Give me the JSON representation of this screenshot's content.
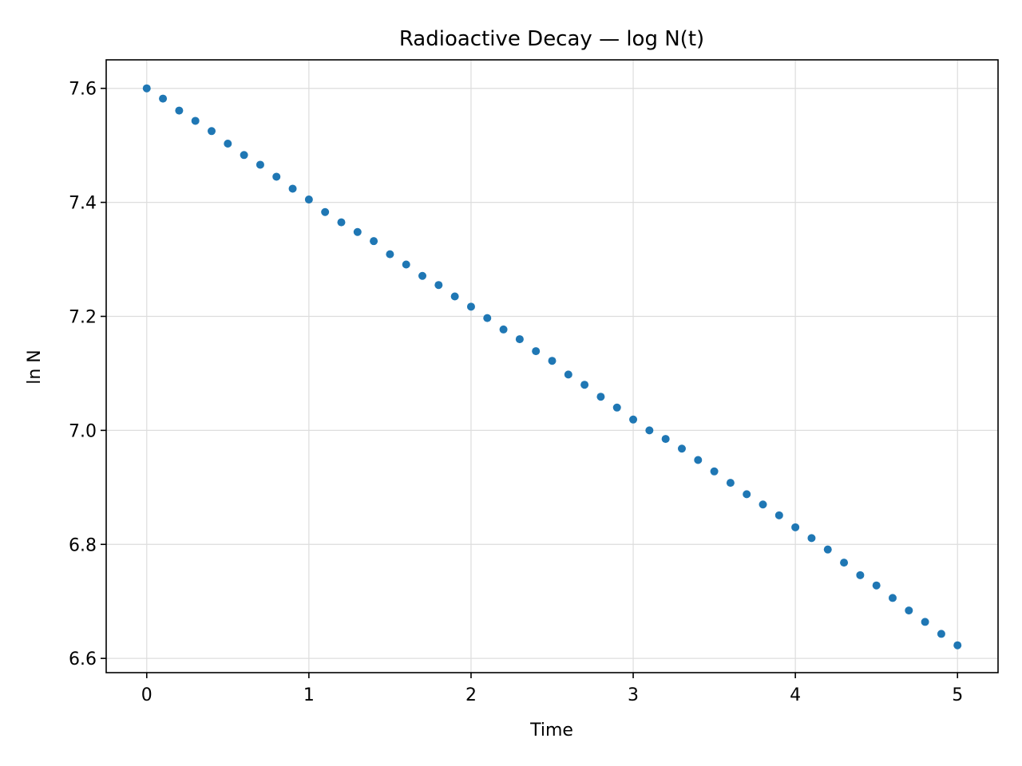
{
  "chart_data": {
    "type": "scatter",
    "title": "Radioactive Decay — log N(t)",
    "xlabel": "Time",
    "ylabel": "ln N",
    "xlim": [
      -0.25,
      5.25
    ],
    "ylim": [
      6.575,
      7.65
    ],
    "xticks": [
      0,
      1,
      2,
      3,
      4,
      5
    ],
    "xtick_labels": [
      "0",
      "1",
      "2",
      "3",
      "4",
      "5"
    ],
    "yticks": [
      6.6,
      6.8,
      7.0,
      7.2,
      7.4,
      7.6
    ],
    "ytick_labels": [
      "6.6",
      "6.8",
      "7.0",
      "7.2",
      "7.4",
      "7.6"
    ],
    "grid": true,
    "color": "#1f77b4",
    "series": [
      {
        "x": [
          0.0,
          0.1,
          0.2,
          0.3,
          0.4,
          0.5,
          0.6,
          0.7,
          0.8,
          0.9,
          1.0,
          1.1,
          1.2,
          1.3,
          1.4,
          1.5,
          1.6,
          1.7,
          1.8,
          1.9,
          2.0,
          2.1,
          2.2,
          2.3,
          2.4,
          2.5,
          2.6,
          2.7,
          2.8,
          2.9,
          3.0,
          3.1,
          3.2,
          3.3,
          3.4,
          3.5,
          3.6,
          3.7,
          3.8,
          3.9,
          4.0,
          4.1,
          4.2,
          4.3,
          4.4,
          4.5,
          4.6,
          4.7,
          4.8,
          4.9,
          5.0
        ],
        "y": [
          7.6,
          7.582,
          7.561,
          7.543,
          7.525,
          7.503,
          7.483,
          7.466,
          7.445,
          7.424,
          7.405,
          7.383,
          7.365,
          7.348,
          7.332,
          7.309,
          7.291,
          7.271,
          7.255,
          7.235,
          7.217,
          7.197,
          7.177,
          7.16,
          7.139,
          7.122,
          7.098,
          7.08,
          7.059,
          7.04,
          7.019,
          7.0,
          6.985,
          6.968,
          6.948,
          6.928,
          6.908,
          6.888,
          6.87,
          6.851,
          6.83,
          6.811,
          6.791,
          6.768,
          6.746,
          6.728,
          6.706,
          6.684,
          6.664,
          6.643,
          6.623
        ]
      }
    ]
  }
}
